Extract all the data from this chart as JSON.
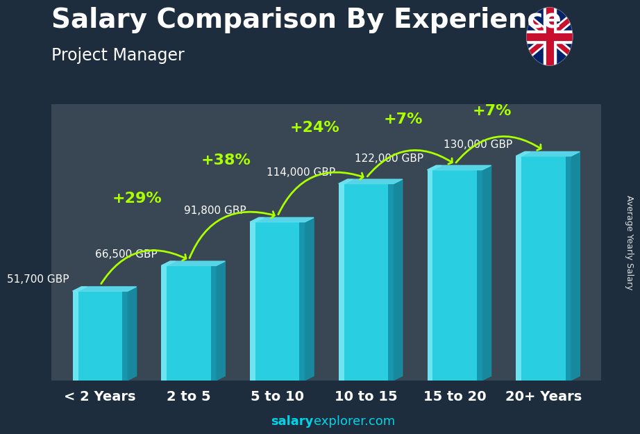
{
  "title": "Salary Comparison By Experience",
  "subtitle": "Project Manager",
  "categories": [
    "< 2 Years",
    "2 to 5",
    "5 to 10",
    "10 to 15",
    "15 to 20",
    "20+ Years"
  ],
  "values": [
    51700,
    66500,
    91800,
    114000,
    122000,
    130000
  ],
  "salary_labels": [
    "51,700 GBP",
    "66,500 GBP",
    "91,800 GBP",
    "114,000 GBP",
    "122,000 GBP",
    "130,000 GBP"
  ],
  "pct_changes": [
    null,
    "+29%",
    "+38%",
    "+24%",
    "+7%",
    "+7%"
  ],
  "bar_color_front": "#29cfe0",
  "bar_color_left_highlight": "#7aeaf5",
  "bar_color_right_shadow": "#1590a8",
  "bar_color_top": "#5adcee",
  "bar_color_top_dark": "#108090",
  "ylabel": "Average Yearly Salary",
  "footer_bold": "salary",
  "footer_regular": "explorer.com",
  "background_color": "#1e2d3d",
  "title_color": "#ffffff",
  "subtitle_color": "#ffffff",
  "label_color": "#ffffff",
  "pct_color": "#aaff00",
  "footer_bold_color": "#00d4e8",
  "footer_regular_color": "#00d4e8",
  "title_fontsize": 28,
  "subtitle_fontsize": 17,
  "cat_fontsize": 14,
  "salary_fontsize": 11,
  "pct_fontsize": 16,
  "bar_width": 0.62,
  "bar_gap": 0.38,
  "ylim_max": 160000,
  "ylabel_fontsize": 9
}
